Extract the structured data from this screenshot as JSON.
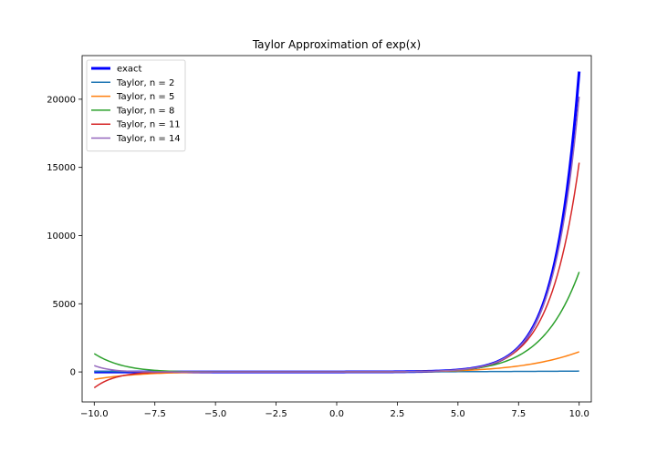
{
  "chart_data": {
    "type": "line",
    "title": "Taylor Approximation of exp(x)",
    "xlabel": "",
    "ylabel": "",
    "xlim": [
      -10.5,
      10.5
    ],
    "ylim": [
      -2200,
      23200
    ],
    "grid": false,
    "legend_position": "top-left",
    "x_ticks": [
      -10.0,
      -7.5,
      -5.0,
      -2.5,
      0.0,
      2.5,
      5.0,
      7.5,
      10.0
    ],
    "x_tick_labels": [
      "−10.0",
      "−7.5",
      "−5.0",
      "−2.5",
      "0.0",
      "2.5",
      "5.0",
      "7.5",
      "10.0"
    ],
    "y_ticks": [
      0,
      5000,
      10000,
      15000,
      20000
    ],
    "y_tick_labels": [
      "0",
      "5000",
      "10000",
      "15000",
      "20000"
    ],
    "x_range": [
      -10,
      10
    ],
    "series": [
      {
        "name": "exact",
        "color": "#0000ff",
        "kind": "exact",
        "width": 3
      },
      {
        "name": "Taylor, n = 2",
        "color": "#1f77b4",
        "kind": "taylor",
        "n": 2,
        "width": 1.5
      },
      {
        "name": "Taylor, n = 5",
        "color": "#ff7f0e",
        "kind": "taylor",
        "n": 5,
        "width": 1.5
      },
      {
        "name": "Taylor, n = 8",
        "color": "#2ca02c",
        "kind": "taylor",
        "n": 8,
        "width": 1.5
      },
      {
        "name": "Taylor, n = 11",
        "color": "#d62728",
        "kind": "taylor",
        "n": 11,
        "width": 1.5
      },
      {
        "name": "Taylor, n = 14",
        "color": "#9467bd",
        "kind": "taylor",
        "n": 14,
        "width": 1.5
      }
    ]
  }
}
